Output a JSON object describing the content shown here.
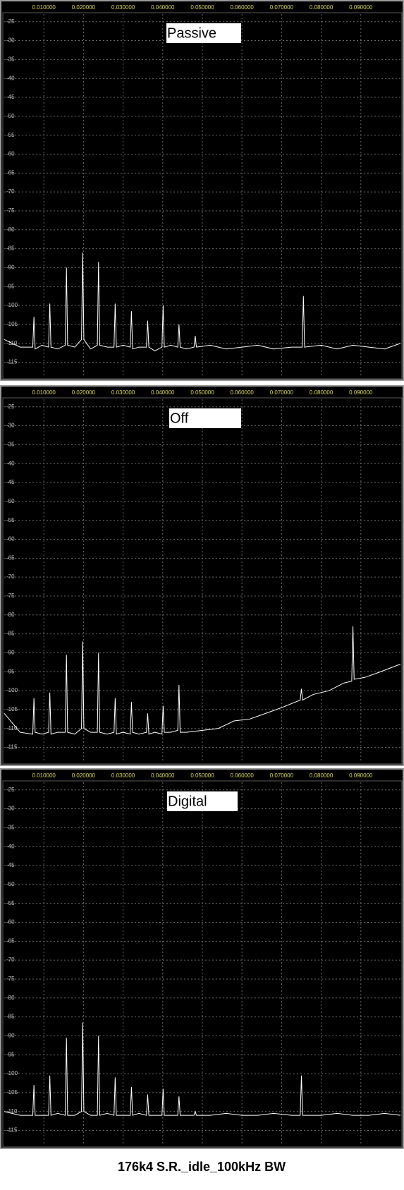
{
  "chart_data": [
    {
      "type": "line",
      "title": "Passive",
      "x": [
        0,
        0.004,
        0.0072,
        0.0075,
        0.0078,
        0.0095,
        0.0112,
        0.0115,
        0.0118,
        0.0135,
        0.0154,
        0.0157,
        0.016,
        0.0178,
        0.0195,
        0.0198,
        0.0201,
        0.0218,
        0.0235,
        0.0238,
        0.0241,
        0.026,
        0.0277,
        0.028,
        0.0283,
        0.03,
        0.0318,
        0.0321,
        0.0324,
        0.034,
        0.0359,
        0.0362,
        0.0365,
        0.038,
        0.0398,
        0.0401,
        0.0404,
        0.042,
        0.0438,
        0.0441,
        0.0444,
        0.046,
        0.0479,
        0.0482,
        0.0485,
        0.052,
        0.056,
        0.06,
        0.064,
        0.068,
        0.0725,
        0.0752,
        0.0755,
        0.0758,
        0.08,
        0.084,
        0.088,
        0.092,
        0.096,
        0.1
      ],
      "series": [
        {
          "color": "#ffffff",
          "values": [
            -109,
            -111,
            -111,
            -103,
            -111.5,
            -110.5,
            -111,
            -99.5,
            -111,
            -111.5,
            -110.5,
            -90,
            -110.5,
            -111,
            -109,
            -86,
            -109,
            -111.5,
            -110.5,
            -88.5,
            -110.5,
            -111,
            -111,
            -99.5,
            -111,
            -110.5,
            -111,
            -101.5,
            -111.5,
            -111,
            -111,
            -104,
            -111,
            -112,
            -111,
            -100,
            -111,
            -110.5,
            -111,
            -105,
            -111,
            -111.5,
            -111,
            -108,
            -111,
            -110.5,
            -111.5,
            -111,
            -110.5,
            -111.5,
            -111,
            -111,
            -97.5,
            -111,
            -110.5,
            -111.5,
            -110.5,
            -111,
            -111.5,
            -110
          ]
        }
      ],
      "xlim": [
        0,
        0.1
      ],
      "xticks": [
        {
          "value": 0.01,
          "label": "0.010000"
        },
        {
          "value": 0.02,
          "label": "0.020000"
        },
        {
          "value": 0.03,
          "label": "0.030000"
        },
        {
          "value": 0.04,
          "label": "0.040000"
        },
        {
          "value": 0.05,
          "label": "0.050000"
        },
        {
          "value": 0.06,
          "label": "0.060000"
        },
        {
          "value": 0.07,
          "label": "0.070000"
        },
        {
          "value": 0.08,
          "label": "0.080000"
        },
        {
          "value": 0.09,
          "label": "0.090000"
        }
      ],
      "ylim": [
        -119,
        -23
      ],
      "yticks": [
        -25,
        -30,
        -35,
        -40,
        -45,
        -50,
        -55,
        -60,
        -65,
        -70,
        -75,
        -80,
        -85,
        -90,
        -95,
        -100,
        -105,
        -110,
        -115
      ],
      "grid": true
    },
    {
      "type": "line",
      "title": "Off",
      "x": [
        0,
        0.004,
        0.0072,
        0.0075,
        0.0078,
        0.0095,
        0.0112,
        0.0115,
        0.0118,
        0.0135,
        0.0154,
        0.0157,
        0.016,
        0.0178,
        0.0195,
        0.0198,
        0.0201,
        0.0218,
        0.0235,
        0.0238,
        0.0241,
        0.026,
        0.0277,
        0.028,
        0.0283,
        0.03,
        0.0318,
        0.0321,
        0.0324,
        0.034,
        0.0359,
        0.0362,
        0.0365,
        0.038,
        0.0398,
        0.0401,
        0.0404,
        0.042,
        0.0438,
        0.0441,
        0.0444,
        0.046,
        0.05,
        0.054,
        0.058,
        0.062,
        0.066,
        0.07,
        0.0747,
        0.075,
        0.0753,
        0.078,
        0.082,
        0.0857,
        0.0877,
        0.088,
        0.0883,
        0.091,
        0.095,
        0.1
      ],
      "series": [
        {
          "color": "#ffffff",
          "values": [
            -106,
            -111,
            -111.5,
            -102,
            -111,
            -111.5,
            -111,
            -100.5,
            -111.5,
            -111,
            -111,
            -90.5,
            -111,
            -111.5,
            -110,
            -87,
            -110,
            -111,
            -111,
            -90,
            -111,
            -111.5,
            -111,
            -102,
            -111.5,
            -111,
            -111.5,
            -103,
            -111,
            -111.5,
            -111,
            -106,
            -111.5,
            -111,
            -111.5,
            -104,
            -111,
            -111,
            -110.5,
            -98.5,
            -111,
            -111,
            -110.5,
            -110,
            -108,
            -107.5,
            -106,
            -104.5,
            -102.5,
            -99.5,
            -102.5,
            -101,
            -100,
            -98,
            -97.5,
            -83,
            -97,
            -96.5,
            -95,
            -93
          ]
        }
      ],
      "xlim": [
        0,
        0.1
      ],
      "xticks": [
        {
          "value": 0.01,
          "label": "0.010000"
        },
        {
          "value": 0.02,
          "label": "0.020000"
        },
        {
          "value": 0.03,
          "label": "0.030000"
        },
        {
          "value": 0.04,
          "label": "0.040000"
        },
        {
          "value": 0.05,
          "label": "0.050000"
        },
        {
          "value": 0.06,
          "label": "0.060000"
        },
        {
          "value": 0.07,
          "label": "0.070000"
        },
        {
          "value": 0.08,
          "label": "0.080000"
        },
        {
          "value": 0.09,
          "label": "0.090000"
        }
      ],
      "ylim": [
        -119,
        -23
      ],
      "yticks": [
        -25,
        -30,
        -35,
        -40,
        -45,
        -50,
        -55,
        -60,
        -65,
        -70,
        -75,
        -80,
        -85,
        -90,
        -95,
        -100,
        -105,
        -110,
        -115
      ],
      "grid": true
    },
    {
      "type": "line",
      "title": "Digital",
      "x": [
        0,
        0.004,
        0.0072,
        0.0075,
        0.0078,
        0.0095,
        0.0112,
        0.0115,
        0.0118,
        0.0135,
        0.0154,
        0.0157,
        0.016,
        0.0178,
        0.0195,
        0.0198,
        0.0201,
        0.0218,
        0.0235,
        0.0238,
        0.0241,
        0.026,
        0.0277,
        0.028,
        0.0283,
        0.03,
        0.0318,
        0.0321,
        0.0324,
        0.034,
        0.0359,
        0.0362,
        0.0365,
        0.038,
        0.0398,
        0.0401,
        0.0404,
        0.042,
        0.0438,
        0.0441,
        0.0444,
        0.046,
        0.0479,
        0.0482,
        0.0485,
        0.052,
        0.056,
        0.06,
        0.064,
        0.068,
        0.0725,
        0.0747,
        0.075,
        0.0753,
        0.08,
        0.084,
        0.088,
        0.092,
        0.096,
        0.1
      ],
      "series": [
        {
          "color": "#ffffff",
          "values": [
            -110,
            -111,
            -111,
            -103,
            -111,
            -111,
            -111,
            -100.5,
            -111,
            -110.5,
            -111,
            -90.5,
            -111,
            -111,
            -110,
            -86.5,
            -110,
            -111,
            -111,
            -90,
            -111,
            -110.5,
            -111,
            -101,
            -111,
            -111,
            -111,
            -103.5,
            -111,
            -110.5,
            -111,
            -105.5,
            -111,
            -111,
            -111,
            -104,
            -111,
            -111,
            -111,
            -106,
            -111,
            -111,
            -111,
            -110,
            -111,
            -111,
            -110.5,
            -111,
            -111,
            -110.5,
            -111,
            -111,
            -100.5,
            -111,
            -111,
            -110.5,
            -111,
            -111,
            -110.5,
            -111
          ]
        }
      ],
      "xlim": [
        0,
        0.1
      ],
      "xticks": [
        {
          "value": 0.01,
          "label": "0.010000"
        },
        {
          "value": 0.02,
          "label": "0.020000"
        },
        {
          "value": 0.03,
          "label": "0.030000"
        },
        {
          "value": 0.04,
          "label": "0.040000"
        },
        {
          "value": 0.05,
          "label": "0.050000"
        },
        {
          "value": 0.06,
          "label": "0.060000"
        },
        {
          "value": 0.07,
          "label": "0.070000"
        },
        {
          "value": 0.08,
          "label": "0.080000"
        },
        {
          "value": 0.09,
          "label": "0.090000"
        }
      ],
      "ylim": [
        -119,
        -23
      ],
      "yticks": [
        -25,
        -30,
        -35,
        -40,
        -45,
        -50,
        -55,
        -60,
        -65,
        -70,
        -75,
        -80,
        -85,
        -90,
        -95,
        -100,
        -105,
        -110,
        -115
      ],
      "grid": true
    }
  ],
  "caption": "176k4 S.R._idle_100kHz BW"
}
